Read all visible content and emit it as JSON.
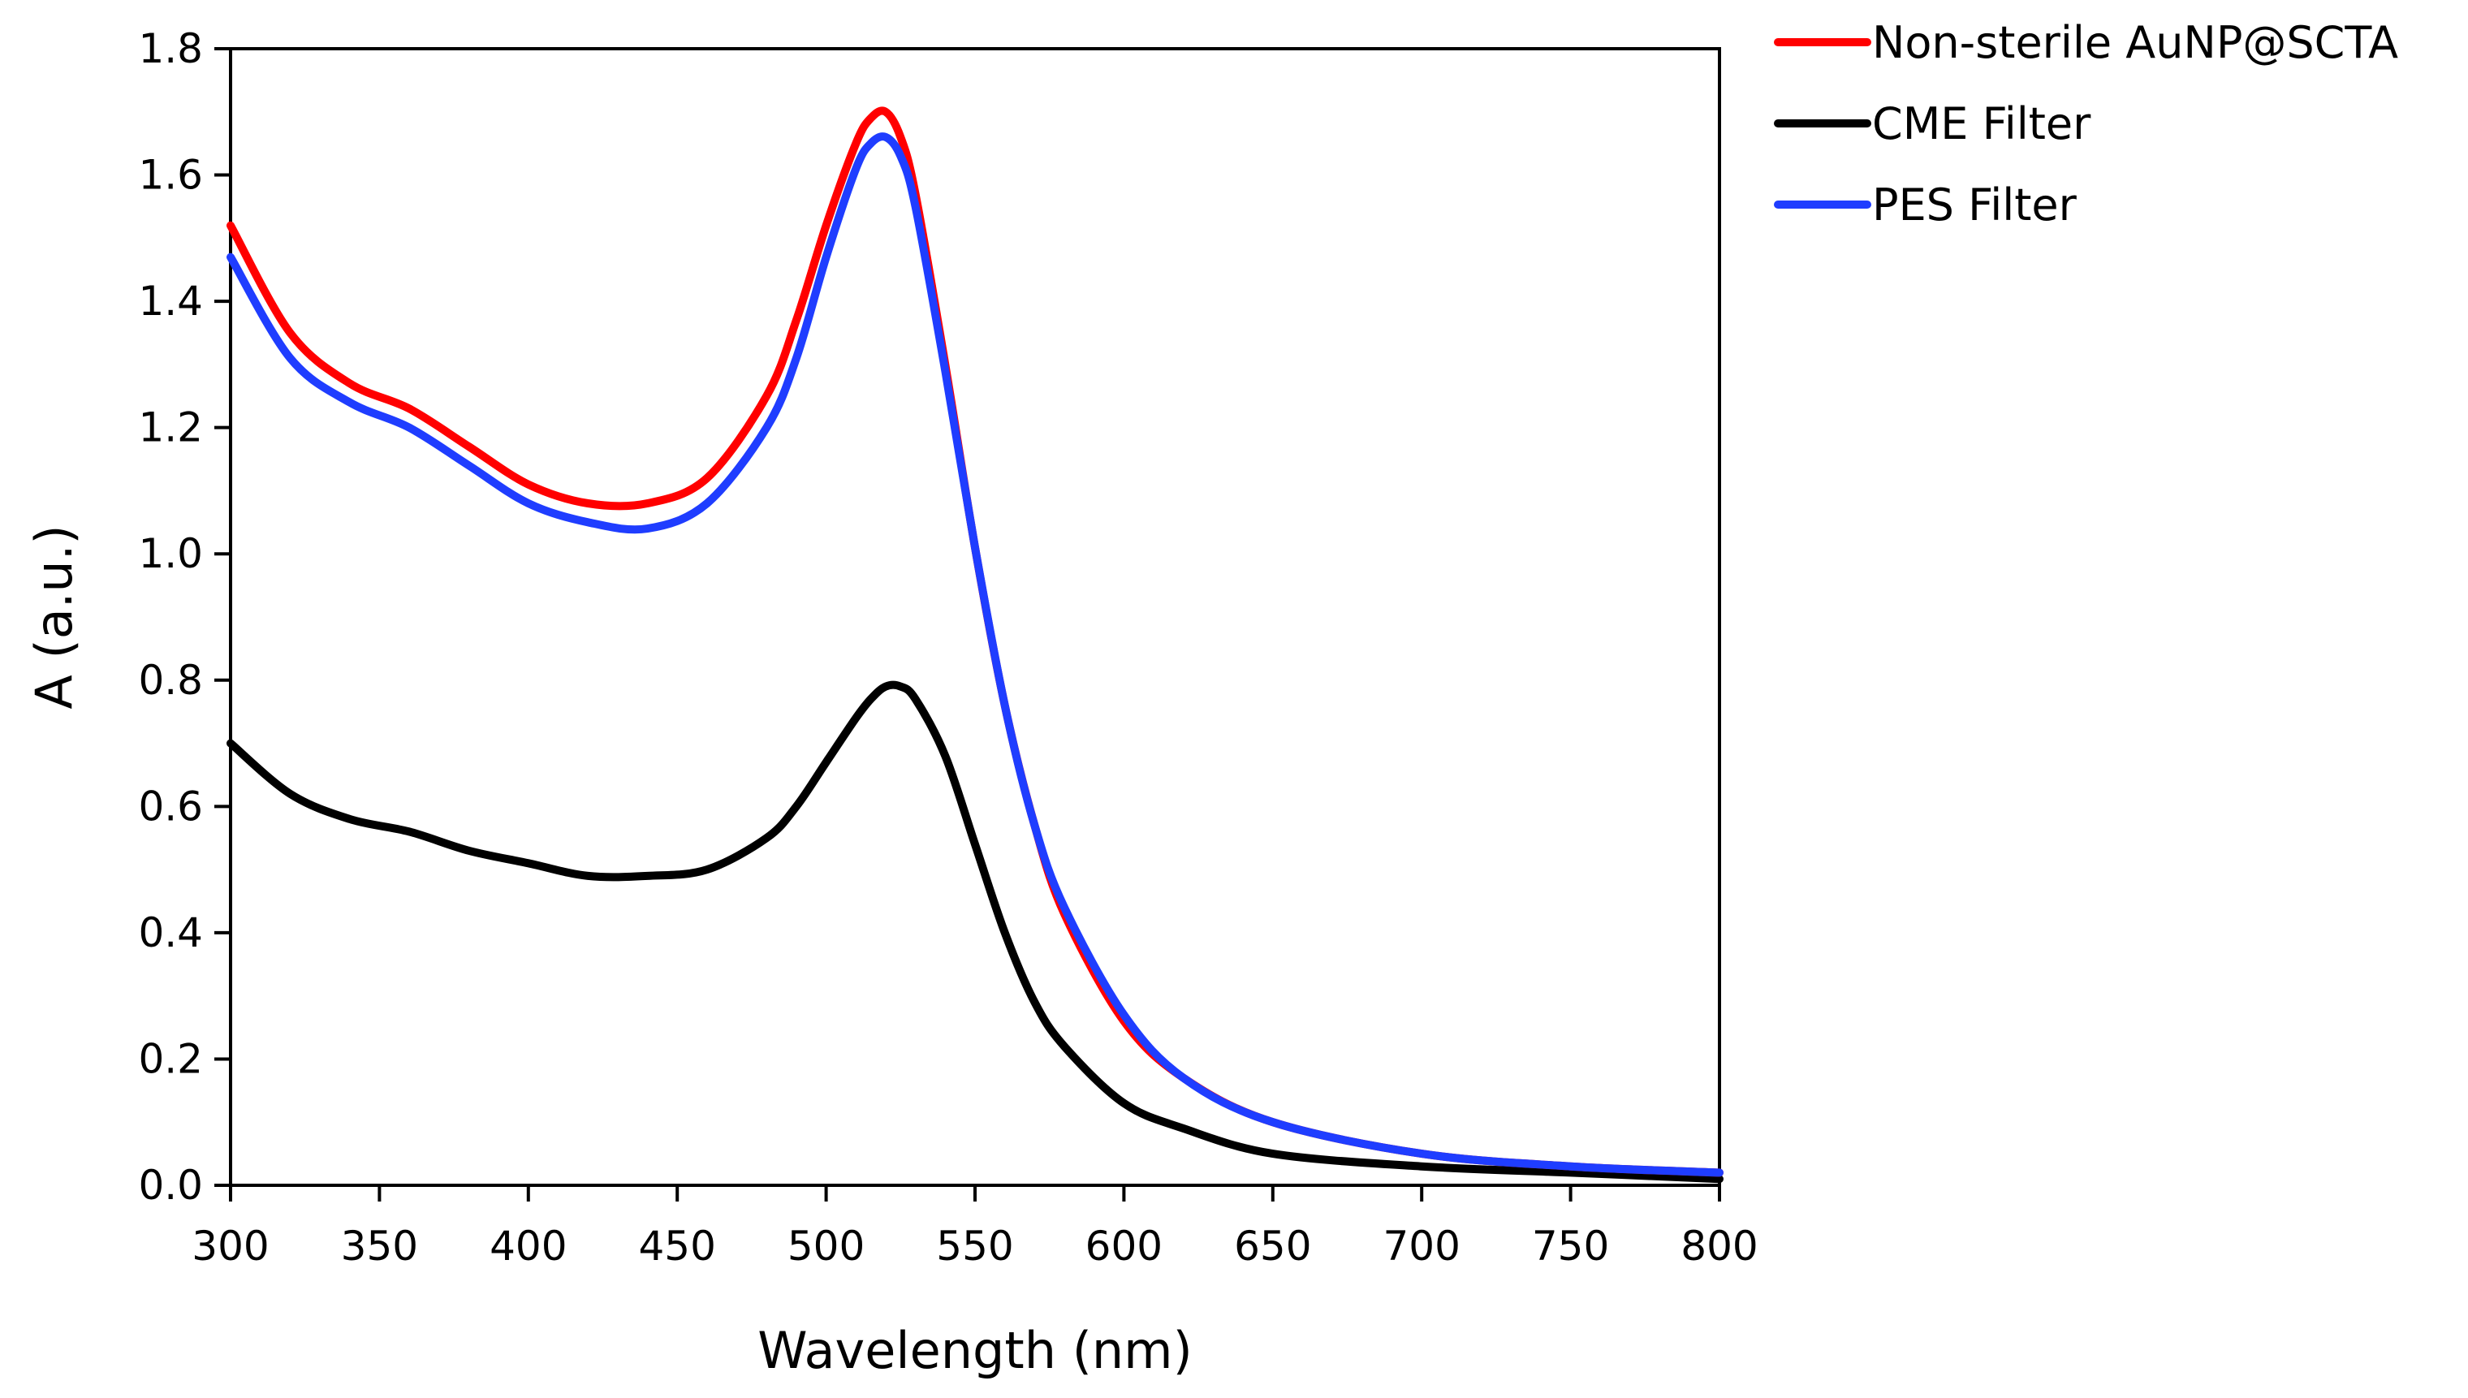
{
  "chart_data": {
    "type": "line",
    "title": "",
    "xlabel": "Wavelength (nm)",
    "ylabel": "A (a.u.)",
    "xlim": [
      300,
      800
    ],
    "ylim": [
      0.0,
      1.8
    ],
    "grid": false,
    "legend_position": "top-right, outside plot",
    "x_ticks": [
      300,
      350,
      400,
      450,
      500,
      550,
      600,
      650,
      700,
      750,
      800
    ],
    "x_tick_labels": [
      "300",
      "350",
      "400",
      "450",
      "500",
      "550",
      "600",
      "650",
      "700",
      "750",
      "800"
    ],
    "y_ticks": [
      0.0,
      0.2,
      0.4,
      0.6,
      0.8,
      1.0,
      1.2,
      1.4,
      1.6,
      1.8
    ],
    "y_tick_labels": [
      "0.0",
      "0.2",
      "0.4",
      "0.6",
      "0.8",
      "1.0",
      "1.2",
      "1.4",
      "1.6",
      "1.8"
    ],
    "x": [
      300,
      320,
      340,
      360,
      380,
      400,
      420,
      440,
      460,
      480,
      490,
      500,
      510,
      515,
      520,
      525,
      530,
      540,
      550,
      560,
      570,
      580,
      600,
      620,
      650,
      700,
      750,
      800
    ],
    "series": [
      {
        "name": "Non-sterile AuNP@SCTA",
        "color": "#ff0000",
        "values": [
          1.52,
          1.35,
          1.27,
          1.23,
          1.17,
          1.11,
          1.08,
          1.08,
          1.12,
          1.25,
          1.37,
          1.52,
          1.65,
          1.69,
          1.7,
          1.66,
          1.57,
          1.3,
          1.01,
          0.76,
          0.57,
          0.43,
          0.26,
          0.17,
          0.1,
          0.05,
          0.03,
          0.02
        ]
      },
      {
        "name": "CME Filter",
        "color": "#000000",
        "values": [
          0.7,
          0.62,
          0.58,
          0.56,
          0.53,
          0.51,
          0.49,
          0.49,
          0.5,
          0.55,
          0.6,
          0.67,
          0.74,
          0.77,
          0.79,
          0.79,
          0.77,
          0.68,
          0.54,
          0.4,
          0.29,
          0.22,
          0.13,
          0.09,
          0.05,
          0.03,
          0.02,
          0.01
        ]
      },
      {
        "name": "PES Filter",
        "color": "#1f3dff",
        "values": [
          1.47,
          1.31,
          1.24,
          1.2,
          1.14,
          1.08,
          1.05,
          1.04,
          1.08,
          1.2,
          1.31,
          1.47,
          1.61,
          1.65,
          1.66,
          1.63,
          1.55,
          1.29,
          1.01,
          0.76,
          0.57,
          0.44,
          0.27,
          0.17,
          0.1,
          0.05,
          0.03,
          0.02
        ]
      }
    ]
  }
}
